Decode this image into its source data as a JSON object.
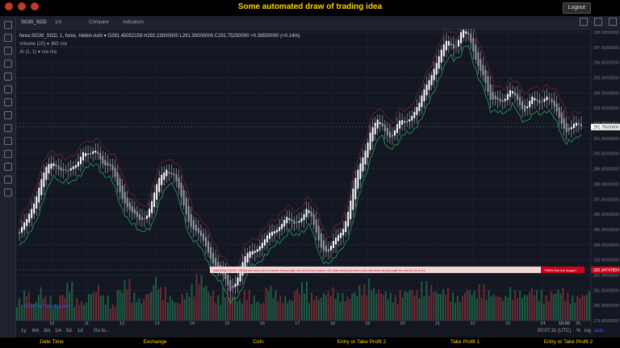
{
  "app": {
    "title": "Some automated draw of trading idea",
    "logout_label": "Logout"
  },
  "toolbar": {
    "symbol": "SG30_SGD",
    "interval": "1m",
    "compare": "Compare",
    "indicators": "Indicators"
  },
  "legend": {
    "main": "forex:SG30_SGD, 1, forex, Heikin Ashi ▾",
    "ohlc": "O291.45052159  H292.23000000  L291.30000000  C291.75250000  +0.39500000 (+0.14%)",
    "volume": "Volume (20) ▾    365  n/a",
    "ai": "AI (1, 1) ▾    n/a  n/a"
  },
  "price_axis": [
    "298.00000000",
    "297.00000000",
    "296.00000000",
    "295.00000000",
    "294.00000000",
    "293.00000000",
    "292.00000000",
    "291.00000000",
    "290.00000000",
    "289.00000000",
    "288.00000000",
    "287.00000000",
    "286.00000000",
    "285.00000000",
    "284.00000000",
    "283.00000000",
    "282.00000000",
    "281.00000000",
    "280.00000000",
    "279.00000000"
  ],
  "price_labels": {
    "current": "291.75500000",
    "signal": "282.34747804"
  },
  "time_axis": [
    "10",
    "11",
    "12",
    "13",
    "14",
    "15",
    "16",
    "17",
    "18",
    "19",
    "20",
    "21",
    "22",
    "23",
    "24",
    "25"
  ],
  "time_axis_end": "10:00",
  "annotation": {
    "text": "Wait till flip OVER !    DRAW just when   price is above strong angle line and AI line is green       OR      draw shorts just when price still below strong angle line and AI line is red",
    "badge": "THEN See the magic!!"
  },
  "watermark": "Chart by TradingView",
  "bottom": {
    "ranges": [
      "1y",
      "6m",
      "3m",
      "1m",
      "5d",
      "1d",
      "Go to..."
    ],
    "clock": "00:07:31 (UTC)",
    "pct": "%",
    "log": "log",
    "auto": "auto"
  },
  "footer": [
    "Date Time",
    "Exchange",
    "Coin",
    "Entry or Take Profit 2",
    "Take Profit 1",
    "Entry or Take Profit 2"
  ],
  "chart_data": {
    "type": "candlestick",
    "ylim": [
      279,
      298
    ],
    "close_path": [
      284.8,
      285.4,
      286.8,
      288.2,
      289.0,
      289.5,
      289.0,
      288.6,
      289.3,
      290.3,
      289.7,
      290.2,
      289.5,
      289.0,
      287.8,
      287.0,
      286.0,
      285.5,
      286.0,
      287.0,
      288.3,
      289.2,
      288.6,
      287.0,
      285.8,
      285.0,
      284.2,
      283.5,
      282.7,
      281.8,
      281.0,
      281.9,
      282.9,
      283.6,
      284.0,
      284.2,
      284.8,
      285.4,
      285.7,
      285.2,
      285.9,
      286.4,
      285.0,
      284.0,
      283.5,
      284.2,
      285.1,
      286.6,
      288.4,
      290.0,
      291.6,
      292.0,
      291.6,
      291.2,
      291.9,
      292.1,
      292.8,
      293.2,
      294.5,
      295.8,
      296.6,
      297.4,
      297.1,
      298.1,
      297.6,
      296.4,
      295.2,
      293.3,
      293.8,
      293.5,
      294.0,
      293.6,
      292.9,
      293.5,
      293.4,
      294.0,
      293.0,
      292.2,
      291.6,
      291.8,
      291.75
    ],
    "volume_max": 100,
    "volume_profile": [
      40,
      55,
      35,
      60,
      45,
      30,
      50,
      70,
      40,
      35,
      55,
      65,
      45,
      30,
      60,
      75,
      50,
      40,
      55,
      80,
      60,
      45,
      35,
      50,
      65,
      85,
      70,
      55,
      45,
      60,
      50,
      40,
      55,
      45,
      35,
      65,
      55,
      45,
      40,
      60,
      70,
      50,
      45,
      55,
      60,
      50,
      45,
      55,
      65,
      75,
      60,
      55,
      50,
      45,
      55,
      60,
      55,
      70,
      65,
      55,
      60,
      50,
      45,
      60,
      55,
      65,
      55,
      50,
      45,
      60,
      55,
      50,
      60,
      55,
      45,
      55,
      60,
      50,
      45,
      50,
      55
    ]
  }
}
